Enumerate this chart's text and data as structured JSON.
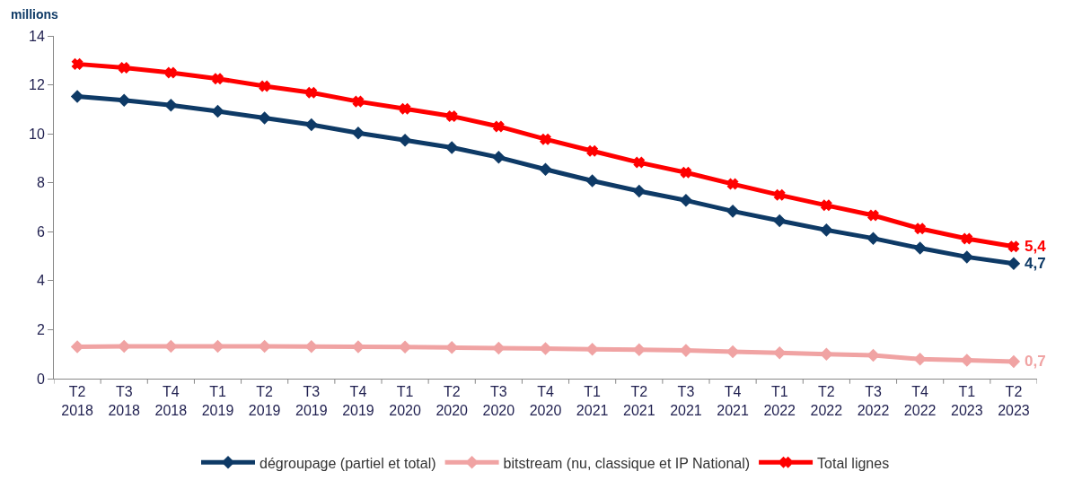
{
  "chart_data": {
    "type": "line",
    "ylabel": "millions",
    "categories": [
      "T2\n2018",
      "T3\n2018",
      "T4\n2018",
      "T1\n2019",
      "T2\n2019",
      "T3\n2019",
      "T4\n2019",
      "T1\n2020",
      "T2\n2020",
      "T3\n2020",
      "T4\n2020",
      "T1\n2021",
      "T2\n2021",
      "T3\n2021",
      "T4\n2021",
      "T1\n2022",
      "T2\n2022",
      "T3\n2022",
      "T4\n2022",
      "T1\n2023",
      "T2\n2023"
    ],
    "series": [
      {
        "name": "dégroupage (partiel et total)",
        "color": "#0e3a66",
        "marker": "diamond",
        "values": [
          11.53,
          11.37,
          11.17,
          10.92,
          10.65,
          10.37,
          10.03,
          9.74,
          9.44,
          9.04,
          8.55,
          8.08,
          7.66,
          7.28,
          6.84,
          6.45,
          6.07,
          5.73,
          5.33,
          4.97,
          4.7
        ],
        "value_labels": [
          null,
          null,
          null,
          null,
          null,
          null,
          null,
          null,
          null,
          null,
          null,
          null,
          null,
          null,
          null,
          null,
          null,
          null,
          null,
          null,
          "4,7"
        ]
      },
      {
        "name": "bitstream (nu, classique et IP National)",
        "color": "#f0a3a3",
        "marker": "diamond",
        "values": [
          1.3,
          1.32,
          1.32,
          1.32,
          1.32,
          1.31,
          1.3,
          1.29,
          1.27,
          1.25,
          1.23,
          1.2,
          1.18,
          1.15,
          1.1,
          1.05,
          1.0,
          0.95,
          0.8,
          0.75,
          0.7
        ],
        "value_labels": [
          null,
          null,
          null,
          null,
          null,
          null,
          null,
          null,
          null,
          null,
          null,
          null,
          null,
          null,
          null,
          null,
          null,
          null,
          null,
          null,
          "0,7"
        ]
      },
      {
        "name": "Total lignes",
        "color": "#ff0000",
        "marker": "cross",
        "values": [
          12.85,
          12.7,
          12.5,
          12.25,
          11.95,
          11.68,
          11.32,
          11.02,
          10.72,
          10.3,
          9.78,
          9.3,
          8.83,
          8.42,
          7.95,
          7.5,
          7.08,
          6.67,
          6.13,
          5.72,
          5.4
        ],
        "value_labels": [
          null,
          null,
          null,
          null,
          null,
          null,
          null,
          null,
          null,
          null,
          null,
          null,
          null,
          null,
          null,
          null,
          null,
          null,
          null,
          null,
          "5,4"
        ]
      }
    ],
    "ylim": [
      0,
      14
    ],
    "yticks": [
      0,
      2,
      4,
      6,
      8,
      10,
      12,
      14
    ],
    "grid": false,
    "legend": "bottom",
    "line_style": "solid"
  }
}
